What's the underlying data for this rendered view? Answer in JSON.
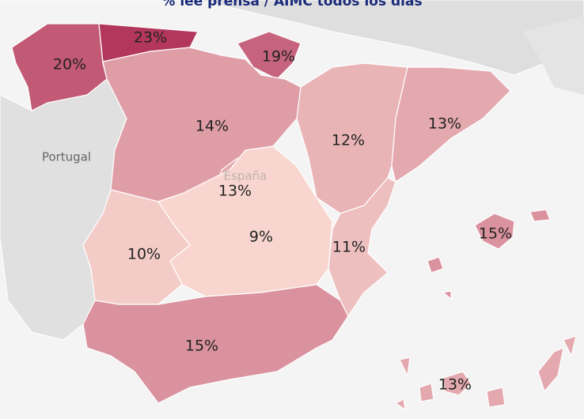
{
  "chart_data": {
    "type": "choropleth",
    "title": "% lee prensa / AIMC todos los días",
    "basemap_labels": [
      "Portugal",
      "España"
    ],
    "values": [
      20,
      23,
      19,
      14,
      12,
      13,
      13,
      9,
      10,
      11,
      15,
      15,
      13
    ],
    "value_labels": [
      "20%",
      "23%",
      "19%",
      "14%",
      "12%",
      "13%",
      "13%",
      "9%",
      "10%",
      "11%",
      "15%",
      "15%",
      "13%"
    ],
    "color_low": "#f8d6cf",
    "color_high": "#b3375c"
  }
}
